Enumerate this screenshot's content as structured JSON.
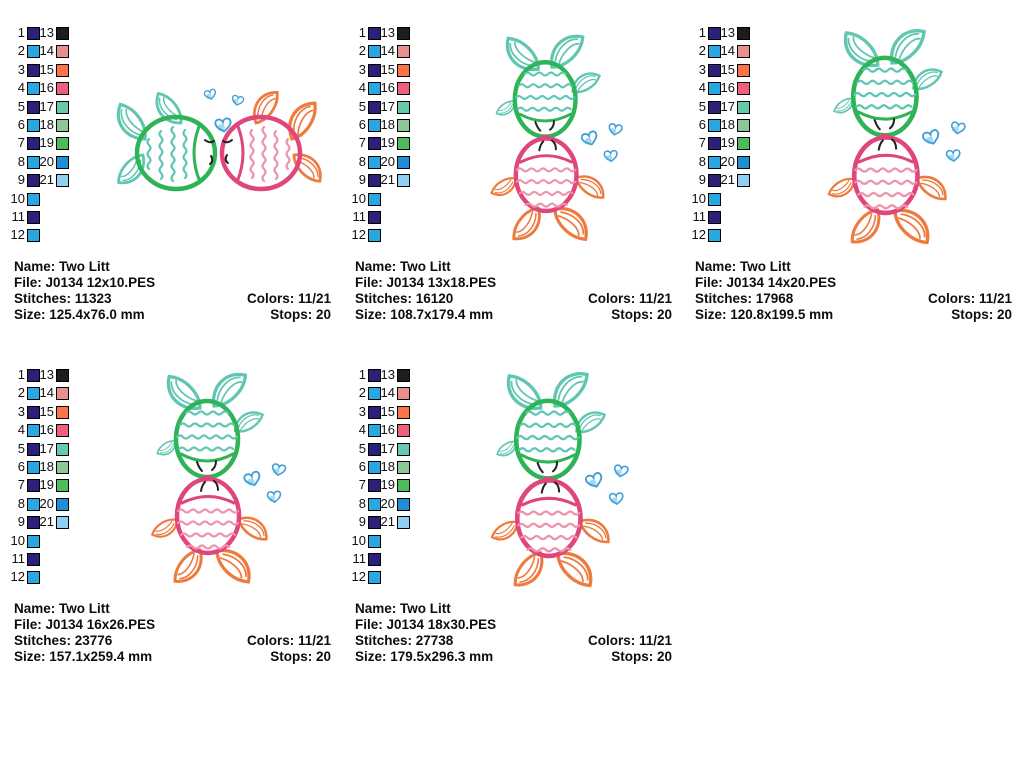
{
  "page": {
    "background": "#ffffff"
  },
  "palette": {
    "entries": [
      {
        "num": "1",
        "color": "#2b2178"
      },
      {
        "num": "2",
        "color": "#2aa7de"
      },
      {
        "num": "3",
        "color": "#2b2178"
      },
      {
        "num": "4",
        "color": "#2aa7de"
      },
      {
        "num": "5",
        "color": "#2b2178"
      },
      {
        "num": "6",
        "color": "#2aa7de"
      },
      {
        "num": "7",
        "color": "#2b2178"
      },
      {
        "num": "8",
        "color": "#2aa7de"
      },
      {
        "num": "9",
        "color": "#2b2178"
      },
      {
        "num": "10",
        "color": "#2aa7de"
      },
      {
        "num": "11",
        "color": "#2b2178"
      },
      {
        "num": "12",
        "color": "#2aa7de"
      },
      {
        "num": "13",
        "color": "#1d1d1d"
      },
      {
        "num": "14",
        "color": "#e98f8e"
      },
      {
        "num": "15",
        "color": "#fb7347"
      },
      {
        "num": "16",
        "color": "#ef5f7d"
      },
      {
        "num": "17",
        "color": "#66c9ac"
      },
      {
        "num": "18",
        "color": "#8cc795"
      },
      {
        "num": "19",
        "color": "#4bbb5c"
      },
      {
        "num": "20",
        "color": "#1f8fd5"
      },
      {
        "num": "21",
        "color": "#90cef2"
      }
    ]
  },
  "design_colors": {
    "green": "#2fb357",
    "teal": "#5fc6b2",
    "pink": "#e0457b",
    "pinklight": "#ef93ab",
    "orange": "#ee7a3e",
    "heart": "#3f9fd8",
    "heartfill": "#a5d9f2",
    "mark": "#222222"
  },
  "panels": [
    {
      "name_line": "Name: Two Litt",
      "file_line": "File: J0134 12x10.PES",
      "stitches_line": "Stitches: 11323",
      "size_line": "Size: 125.4x76.0 mm",
      "colors_line": "Colors: 11/21",
      "stops_line": "Stops: 20"
    },
    {
      "name_line": "Name: Two Litt",
      "file_line": "File: J0134 13x18.PES",
      "stitches_line": "Stitches: 16120",
      "size_line": "Size: 108.7x179.4 mm",
      "colors_line": "Colors: 11/21",
      "stops_line": "Stops: 20"
    },
    {
      "name_line": "Name: Two Litt",
      "file_line": "File: J0134 14x20.PES",
      "stitches_line": "Stitches: 17968",
      "size_line": "Size: 120.8x199.5 mm",
      "colors_line": "Colors: 11/21",
      "stops_line": "Stops: 20"
    },
    {
      "name_line": "Name: Two Litt",
      "file_line": "File: J0134 16x26.PES",
      "stitches_line": "Stitches: 23776",
      "size_line": "Size: 157.1x259.4 mm",
      "colors_line": "Colors: 11/21",
      "stops_line": "Stops: 20"
    },
    {
      "name_line": "Name: Two Litt",
      "file_line": "File: J0134 18x30.PES",
      "stitches_line": "Stitches: 27738",
      "size_line": "Size: 179.5x296.3 mm",
      "colors_line": "Colors: 11/21",
      "stops_line": "Stops: 20"
    }
  ]
}
